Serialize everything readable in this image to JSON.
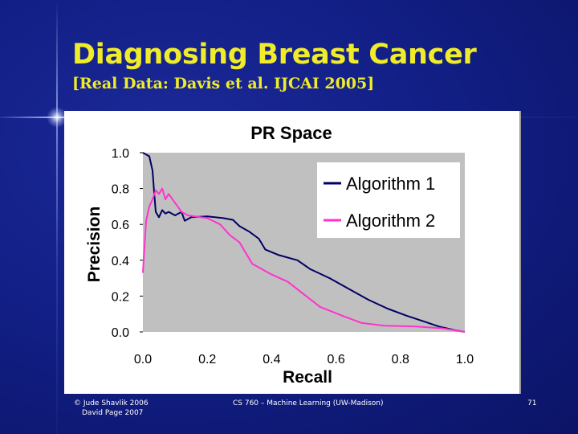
{
  "slide": {
    "title": "Diagnosing Breast Cancer",
    "subtitle": "[Real Data: Davis et al. IJCAI 2005]",
    "footer": {
      "left_line1": "© Jude Shavlik 2006",
      "left_line2": "David Page 2007",
      "center": "CS 760 – Machine Learning (UW-Madison)",
      "page": "71"
    },
    "colors": {
      "background": "#121f86",
      "title": "#f0ec2a",
      "text": "#ffffff"
    }
  },
  "chart_data": {
    "type": "line",
    "title": "PR Space",
    "xlabel": "Recall",
    "ylabel": "Precision",
    "xlim": [
      0,
      1
    ],
    "ylim": [
      0,
      1
    ],
    "xticks": [
      "0.0",
      "0.2",
      "0.4",
      "0.6",
      "0.8",
      "1.0"
    ],
    "yticks": [
      "0.0",
      "0.2",
      "0.4",
      "0.6",
      "0.8",
      "1.0"
    ],
    "grid": false,
    "plot_background": "#c0c0c0",
    "legend_position": "top-right",
    "series": [
      {
        "name": "Algorithm 1",
        "color": "#000066",
        "points": [
          [
            0.0,
            1.0
          ],
          [
            0.02,
            0.98
          ],
          [
            0.03,
            0.9
          ],
          [
            0.035,
            0.78
          ],
          [
            0.04,
            0.67
          ],
          [
            0.05,
            0.64
          ],
          [
            0.06,
            0.68
          ],
          [
            0.07,
            0.66
          ],
          [
            0.08,
            0.67
          ],
          [
            0.1,
            0.65
          ],
          [
            0.12,
            0.67
          ],
          [
            0.13,
            0.62
          ],
          [
            0.15,
            0.64
          ],
          [
            0.2,
            0.645
          ],
          [
            0.25,
            0.635
          ],
          [
            0.28,
            0.625
          ],
          [
            0.3,
            0.59
          ],
          [
            0.33,
            0.56
          ],
          [
            0.36,
            0.52
          ],
          [
            0.38,
            0.46
          ],
          [
            0.42,
            0.43
          ],
          [
            0.48,
            0.4
          ],
          [
            0.52,
            0.35
          ],
          [
            0.58,
            0.3
          ],
          [
            0.64,
            0.24
          ],
          [
            0.7,
            0.18
          ],
          [
            0.76,
            0.13
          ],
          [
            0.82,
            0.09
          ],
          [
            0.87,
            0.06
          ],
          [
            0.92,
            0.03
          ],
          [
            0.97,
            0.01
          ],
          [
            1.0,
            0.0
          ]
        ]
      },
      {
        "name": "Algorithm 2",
        "color": "#ff33cc",
        "points": [
          [
            0.0,
            0.33
          ],
          [
            0.01,
            0.62
          ],
          [
            0.02,
            0.7
          ],
          [
            0.03,
            0.74
          ],
          [
            0.04,
            0.79
          ],
          [
            0.05,
            0.77
          ],
          [
            0.06,
            0.8
          ],
          [
            0.07,
            0.74
          ],
          [
            0.08,
            0.77
          ],
          [
            0.1,
            0.72
          ],
          [
            0.12,
            0.67
          ],
          [
            0.14,
            0.65
          ],
          [
            0.2,
            0.635
          ],
          [
            0.24,
            0.6
          ],
          [
            0.27,
            0.54
          ],
          [
            0.3,
            0.5
          ],
          [
            0.34,
            0.38
          ],
          [
            0.4,
            0.32
          ],
          [
            0.45,
            0.28
          ],
          [
            0.5,
            0.21
          ],
          [
            0.55,
            0.14
          ],
          [
            0.62,
            0.09
          ],
          [
            0.68,
            0.05
          ],
          [
            0.75,
            0.035
          ],
          [
            0.85,
            0.03
          ],
          [
            0.93,
            0.02
          ],
          [
            1.0,
            0.0
          ]
        ]
      }
    ]
  }
}
